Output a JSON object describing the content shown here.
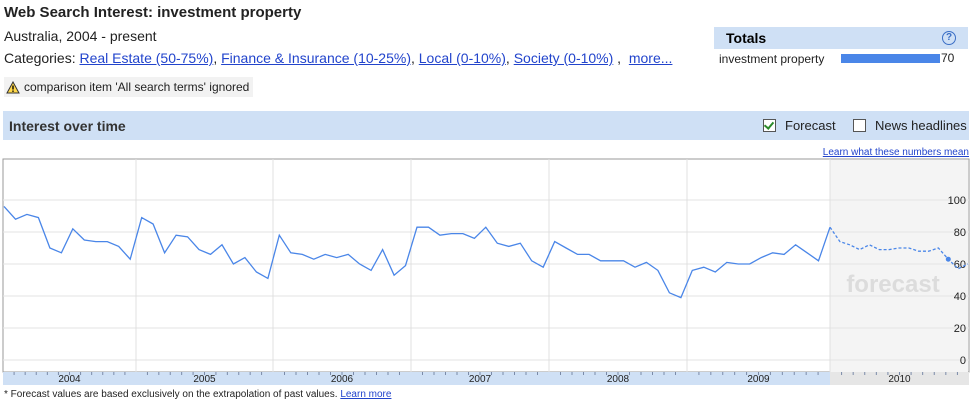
{
  "header": {
    "title": "Web Search Interest: investment property",
    "region": "Australia, 2004 - present",
    "categories_label": "Categories:",
    "categories": [
      {
        "label": "Real Estate (50-75%)"
      },
      {
        "label": "Finance & Insurance (10-25%)"
      },
      {
        "label": "Local (0-10%)"
      },
      {
        "label": "Society (0-10%)"
      }
    ],
    "more_label": "more...",
    "warning": "comparison item 'All search terms' ignored"
  },
  "totals": {
    "title": "Totals",
    "help": "?",
    "term": "investment property",
    "value": "70",
    "bar_fraction": 0.7
  },
  "interest_panel": {
    "title": "Interest over time",
    "forecast_label": "Forecast",
    "forecast_checked": true,
    "news_label": "News headlines",
    "news_checked": false,
    "learn_link": "Learn what these numbers mean"
  },
  "footnote": {
    "text": "* Forecast values are based exclusively on the extrapolation of past values.",
    "link": "Learn more"
  },
  "colors": {
    "line": "#4a86e8",
    "panel": "#cfe0f5",
    "link": "#2244cc"
  },
  "chart_data": {
    "type": "line",
    "series": [
      {
        "values": [
          96,
          88,
          91,
          89,
          70,
          67,
          82,
          75,
          74,
          74,
          71,
          63,
          89,
          85,
          67,
          78,
          77,
          69,
          66,
          72,
          60,
          64,
          55,
          51,
          78,
          67,
          66,
          63,
          66,
          64,
          66,
          60,
          56,
          69,
          53,
          59,
          83,
          83,
          78,
          79,
          79,
          76,
          83,
          73,
          71,
          73,
          62,
          58,
          74,
          70,
          66,
          66,
          62,
          62,
          62,
          58,
          61,
          56,
          42,
          39,
          56,
          58,
          55,
          61,
          60,
          60,
          64,
          67,
          66,
          72,
          67,
          62,
          83
        ],
        "style": "solid"
      },
      {
        "values": [
          83,
          74,
          72,
          69,
          72,
          69,
          69,
          70,
          70,
          68,
          68,
          70,
          63,
          57,
          60
        ],
        "style": "dashed"
      }
    ],
    "x_labels": [
      "2004",
      "2005",
      "2006",
      "2007",
      "2008",
      "2009",
      "2010"
    ],
    "y_ticks": [
      0,
      20,
      40,
      60,
      80,
      100
    ],
    "ylim": [
      0,
      110
    ],
    "forecast_text": "forecast"
  }
}
